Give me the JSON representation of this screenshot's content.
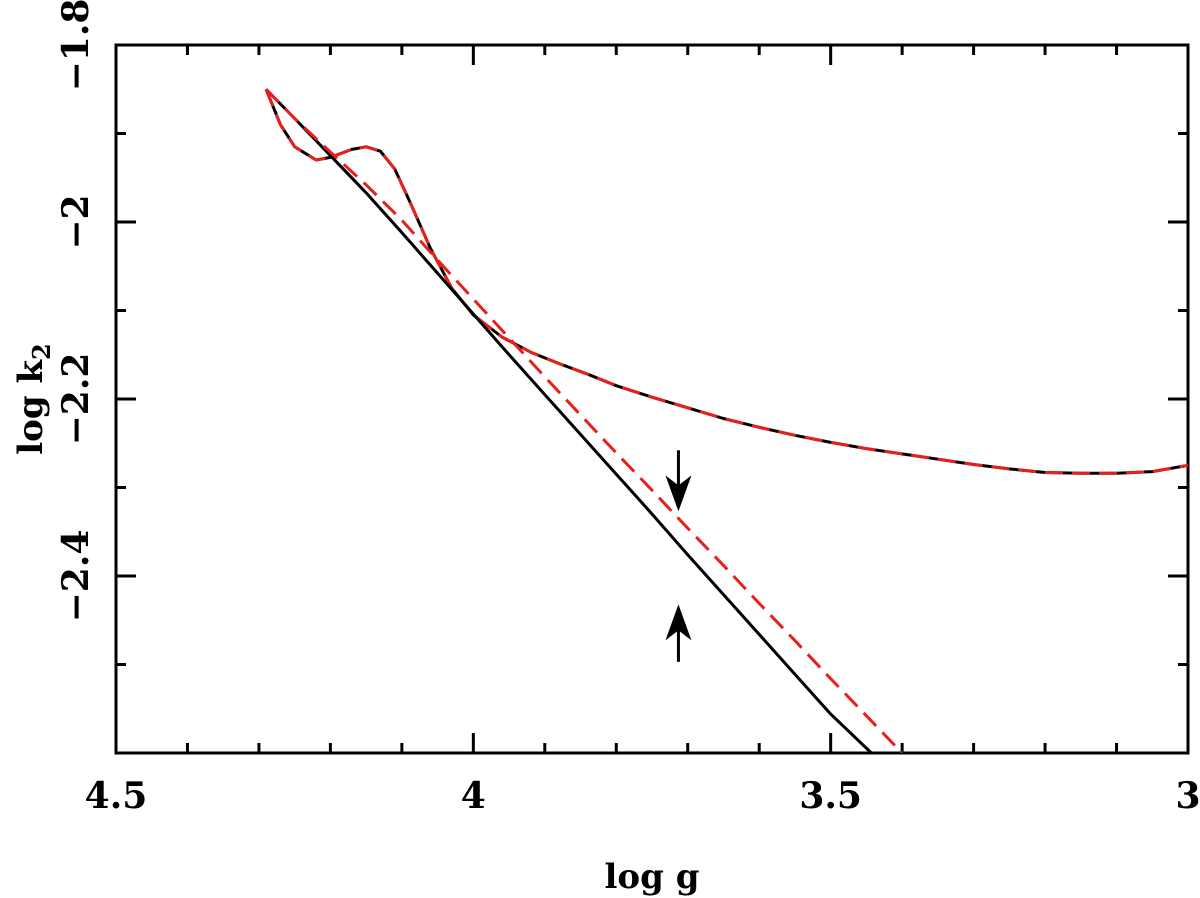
{
  "chart_data": {
    "type": "line",
    "title": "",
    "xlabel": "log g",
    "ylabel_main": "log k",
    "ylabel_sub": "2",
    "xlim": [
      4.5,
      3.0
    ],
    "ylim": [
      -2.6,
      -1.8
    ],
    "x_reversed": true,
    "x_ticks": [
      4.5,
      4.0,
      3.5,
      3.0
    ],
    "x_tick_labels": [
      "4.5",
      "4",
      "3.5",
      "3"
    ],
    "y_ticks": [
      -2.4,
      -2.2,
      -2.0,
      -1.8
    ],
    "y_tick_labels": [
      "−2.4",
      "−2.2",
      "−2",
      "−1.8"
    ],
    "grid": false,
    "series": [
      {
        "style": "solid",
        "color": "#000000",
        "x": [
          4.29,
          4.27,
          4.25,
          4.22,
          4.2,
          4.17,
          4.15,
          4.13,
          4.11,
          4.09,
          4.06,
          4.03,
          4.0,
          3.96,
          3.92,
          3.88,
          3.84,
          3.8,
          3.75,
          3.7,
          3.65,
          3.6,
          3.55,
          3.5,
          3.45,
          3.4,
          3.35,
          3.3,
          3.25,
          3.2,
          3.15,
          3.1,
          3.05,
          3.0
        ],
        "y": [
          -1.85,
          -1.89,
          -1.915,
          -1.93,
          -1.927,
          -1.918,
          -1.915,
          -1.92,
          -1.94,
          -1.975,
          -2.03,
          -2.075,
          -2.105,
          -2.13,
          -2.147,
          -2.16,
          -2.172,
          -2.185,
          -2.198,
          -2.21,
          -2.222,
          -2.232,
          -2.241,
          -2.249,
          -2.256,
          -2.262,
          -2.268,
          -2.274,
          -2.279,
          -2.283,
          -2.284,
          -2.284,
          -2.282,
          -2.275
        ]
      },
      {
        "style": "dashed",
        "color": "#e8201c",
        "x": [
          4.29,
          4.27,
          4.25,
          4.22,
          4.2,
          4.17,
          4.15,
          4.13,
          4.11,
          4.09,
          4.06,
          4.03,
          4.0,
          3.96,
          3.92,
          3.88,
          3.84,
          3.8,
          3.75,
          3.7,
          3.65,
          3.6,
          3.55,
          3.5,
          3.45,
          3.4,
          3.35,
          3.3,
          3.25,
          3.2,
          3.15,
          3.1,
          3.05,
          3.0
        ],
        "y": [
          -1.85,
          -1.89,
          -1.915,
          -1.93,
          -1.927,
          -1.918,
          -1.915,
          -1.92,
          -1.94,
          -1.975,
          -2.03,
          -2.075,
          -2.105,
          -2.13,
          -2.147,
          -2.16,
          -2.172,
          -2.185,
          -2.198,
          -2.21,
          -2.222,
          -2.232,
          -2.241,
          -2.249,
          -2.256,
          -2.262,
          -2.268,
          -2.274,
          -2.279,
          -2.283,
          -2.284,
          -2.284,
          -2.282,
          -2.275
        ]
      },
      {
        "style": "solid",
        "color": "#000000",
        "x": [
          4.29,
          4.25,
          4.2,
          4.15,
          4.1,
          4.05,
          4.0,
          3.95,
          3.9,
          3.85,
          3.8,
          3.75,
          3.7,
          3.65,
          3.6,
          3.55,
          3.5,
          3.443
        ],
        "y": [
          -1.85,
          -1.883,
          -1.925,
          -1.967,
          -2.012,
          -2.058,
          -2.104,
          -2.15,
          -2.195,
          -2.24,
          -2.285,
          -2.33,
          -2.376,
          -2.421,
          -2.466,
          -2.511,
          -2.556,
          -2.6
        ]
      },
      {
        "style": "dashed",
        "color": "#e8201c",
        "x": [
          4.29,
          4.25,
          4.2,
          4.15,
          4.1,
          4.05,
          4.0,
          3.95,
          3.9,
          3.85,
          3.8,
          3.75,
          3.7,
          3.65,
          3.6,
          3.55,
          3.5,
          3.45,
          3.4
        ],
        "y": [
          -1.85,
          -1.883,
          -1.921,
          -1.958,
          -1.998,
          -2.043,
          -2.087,
          -2.131,
          -2.175,
          -2.218,
          -2.261,
          -2.303,
          -2.346,
          -2.388,
          -2.431,
          -2.473,
          -2.516,
          -2.558,
          -2.6
        ]
      }
    ],
    "annotations": [
      {
        "type": "arrow-down",
        "x": 3.713,
        "y_tail": -2.258,
        "y_head": -2.327
      },
      {
        "type": "arrow-up",
        "x": 3.713,
        "y_tail": -2.497,
        "y_head": -2.432
      }
    ]
  }
}
